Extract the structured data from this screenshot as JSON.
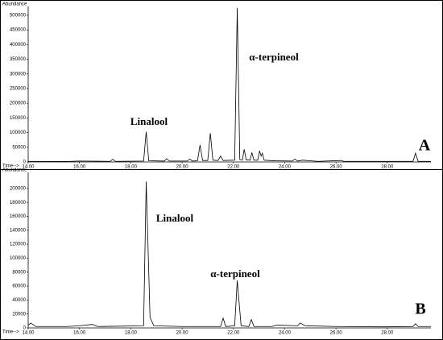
{
  "chart_data": [
    {
      "type": "line",
      "ylabel": "Abundance",
      "xlabel": "Time-->",
      "panel_label": "A",
      "annotations": [
        {
          "text": "Linalool"
        },
        {
          "text": "α-terpineol"
        }
      ],
      "xlim": [
        14,
        29.7
      ],
      "ylim": [
        0,
        530000
      ],
      "xticks": [
        {
          "value": 14,
          "label": "14.00"
        },
        {
          "value": 16,
          "label": "16.00"
        },
        {
          "value": 18,
          "label": "18.00"
        },
        {
          "value": 20,
          "label": "20.00"
        },
        {
          "value": 22,
          "label": "22.00"
        },
        {
          "value": 24,
          "label": "24.00"
        },
        {
          "value": 26,
          "label": "26.00"
        },
        {
          "value": 28,
          "label": "28.00"
        }
      ],
      "yticks": [
        0,
        50000,
        100000,
        150000,
        200000,
        250000,
        300000,
        350000,
        400000,
        450000,
        500000
      ],
      "color": "#000000",
      "x": [
        14.0,
        15.5,
        16.0,
        17.2,
        17.3,
        17.4,
        18.5,
        18.6,
        18.7,
        19.3,
        19.4,
        19.5,
        20.2,
        20.3,
        20.4,
        20.6,
        20.7,
        20.8,
        21.0,
        21.1,
        21.2,
        21.4,
        21.5,
        21.6,
        22.05,
        22.15,
        22.25,
        22.35,
        22.42,
        22.5,
        22.65,
        22.72,
        22.8,
        22.95,
        23.02,
        23.08,
        23.13,
        23.2,
        23.6,
        24.3,
        24.4,
        24.5,
        24.7,
        25.3,
        26.2,
        26.3,
        27.5,
        29.0,
        29.1,
        29.2,
        29.7
      ],
      "values": [
        2000,
        1500,
        3000,
        2000,
        9000,
        2000,
        3000,
        103000,
        4000,
        3000,
        11000,
        3000,
        3000,
        10000,
        3000,
        4000,
        58000,
        5000,
        5000,
        98000,
        6000,
        5000,
        20000,
        5000,
        6000,
        525000,
        8000,
        6000,
        43000,
        7000,
        6000,
        32000,
        6000,
        6000,
        38000,
        20000,
        30000,
        6000,
        4000,
        3000,
        10000,
        3000,
        6000,
        2000,
        5000,
        2000,
        2000,
        2000,
        30000,
        2000,
        2000
      ]
    },
    {
      "type": "line",
      "ylabel": "Abundance",
      "xlabel": "Time-->",
      "panel_label": "B",
      "annotations": [
        {
          "text": "Linalool"
        },
        {
          "text": "α-terpineol"
        }
      ],
      "xlim": [
        14,
        29.7
      ],
      "ylim": [
        0,
        223000
      ],
      "xticks": [
        {
          "value": 14,
          "label": "14.00"
        },
        {
          "value": 16,
          "label": "16.00"
        },
        {
          "value": 18,
          "label": "18.00"
        },
        {
          "value": 20,
          "label": "20.00"
        },
        {
          "value": 22,
          "label": "22.00"
        },
        {
          "value": 24,
          "label": "24.00"
        },
        {
          "value": 26,
          "label": "26.00"
        },
        {
          "value": 28,
          "label": "28.00"
        }
      ],
      "yticks": [
        0,
        20000,
        40000,
        60000,
        80000,
        100000,
        120000,
        140000,
        160000,
        180000,
        200000
      ],
      "color": "#000000",
      "x": [
        14.0,
        14.1,
        14.3,
        15.5,
        16.0,
        16.5,
        16.7,
        18.5,
        18.6,
        18.75,
        18.9,
        20.0,
        21.5,
        21.6,
        21.7,
        22.05,
        22.15,
        22.3,
        22.6,
        22.7,
        22.8,
        23.5,
        23.7,
        24.5,
        24.6,
        24.8,
        26.0,
        27.8,
        29.0,
        29.1,
        29.2,
        29.7
      ],
      "values": [
        4000,
        7000,
        2000,
        2000,
        3000,
        5000,
        2000,
        3000,
        210000,
        15000,
        3000,
        2000,
        2000,
        14000,
        2000,
        3000,
        68000,
        3000,
        2000,
        12000,
        2000,
        2000,
        4000,
        3000,
        7000,
        3000,
        2000,
        1500,
        2000,
        6000,
        2000,
        2000
      ]
    }
  ]
}
